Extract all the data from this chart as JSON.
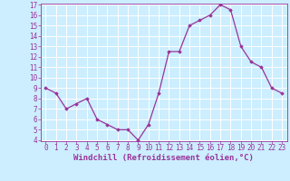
{
  "x": [
    0,
    1,
    2,
    3,
    4,
    5,
    6,
    7,
    8,
    9,
    10,
    11,
    12,
    13,
    14,
    15,
    16,
    17,
    18,
    19,
    20,
    21,
    22,
    23
  ],
  "y": [
    9.0,
    8.5,
    7.0,
    7.5,
    8.0,
    6.0,
    5.5,
    5.0,
    5.0,
    4.0,
    5.5,
    8.5,
    12.5,
    12.5,
    15.0,
    15.5,
    16.0,
    17.0,
    16.5,
    13.0,
    11.5,
    11.0,
    9.0,
    8.5
  ],
  "line_color": "#993399",
  "marker": "D",
  "marker_size": 1.8,
  "xlabel": "Windchill (Refroidissement éolien,°C)",
  "xlabel_fontsize": 6.5,
  "ylim_min": 4,
  "ylim_max": 17,
  "xlim_min": -0.5,
  "xlim_max": 23.5,
  "yticks": [
    4,
    5,
    6,
    7,
    8,
    9,
    10,
    11,
    12,
    13,
    14,
    15,
    16,
    17
  ],
  "xticks": [
    0,
    1,
    2,
    3,
    4,
    5,
    6,
    7,
    8,
    9,
    10,
    11,
    12,
    13,
    14,
    15,
    16,
    17,
    18,
    19,
    20,
    21,
    22,
    23
  ],
  "tick_fontsize": 5.5,
  "background_color": "#cceeff",
  "grid_color": "#ffffff",
  "grid_linewidth": 0.7,
  "line_width": 0.9,
  "spine_color": "#993399",
  "tick_color": "#993399",
  "label_color": "#993399"
}
